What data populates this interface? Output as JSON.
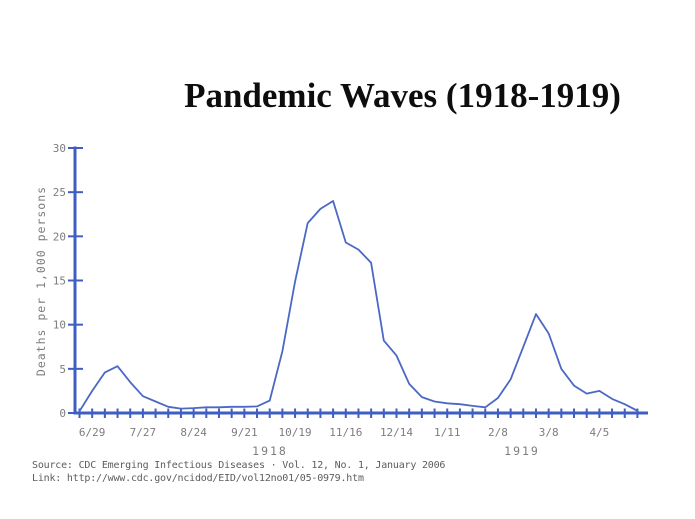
{
  "title": "Pandemic Waves (1918-1919)",
  "source": {
    "line1": "Source: CDC Emerging Infectious Diseases · Vol. 12, No. 1, January 2006",
    "line2": "Link: http://www.cdc.gov/ncidod/EID/vol12no01/05-0979.htm"
  },
  "colors": {
    "curve": "#4a68c4",
    "axis": "#3f5ec2",
    "tick_text": "#7d7d7d",
    "title_text": "#0d0d0d",
    "source_text": "#5c5c5c",
    "background": "#ffffff"
  },
  "chart_data": {
    "type": "line",
    "title": "Pandemic Waves (1918-1919)",
    "xlabel": "",
    "ylabel": "Deaths per 1,000 persons",
    "ylim": [
      0,
      30
    ],
    "yticks": [
      0,
      5,
      10,
      15,
      20,
      25,
      30
    ],
    "grid": "off",
    "legend": "none",
    "x": [
      "6/22",
      "6/29",
      "7/6",
      "7/13",
      "7/20",
      "7/27",
      "8/3",
      "8/10",
      "8/17",
      "8/24",
      "8/31",
      "9/7",
      "9/14",
      "9/21",
      "9/28",
      "10/5",
      "10/12",
      "10/19",
      "10/26",
      "11/2",
      "11/9",
      "11/16",
      "11/23",
      "11/30",
      "12/7",
      "12/14",
      "12/21",
      "12/28",
      "1/4",
      "1/11",
      "1/18",
      "1/25",
      "2/1",
      "2/8",
      "2/15",
      "2/22",
      "3/1",
      "3/8",
      "3/15",
      "3/22",
      "3/29",
      "4/5",
      "4/12",
      "4/19",
      "4/26"
    ],
    "values": [
      0.2,
      2.5,
      4.6,
      5.3,
      3.5,
      1.9,
      1.3,
      0.7,
      0.5,
      0.55,
      0.65,
      0.65,
      0.7,
      0.7,
      0.75,
      1.4,
      7.0,
      14.9,
      21.5,
      23.1,
      24.0,
      19.3,
      18.5,
      17.0,
      8.2,
      6.5,
      3.3,
      1.8,
      1.3,
      1.1,
      1.0,
      0.8,
      0.65,
      1.7,
      3.8,
      7.5,
      11.2,
      9.0,
      5.0,
      3.1,
      2.2,
      2.5,
      1.6,
      1.0,
      0.25
    ],
    "x_tick_labels": [
      {
        "i": 1,
        "label": "6/29"
      },
      {
        "i": 5,
        "label": "7/27"
      },
      {
        "i": 9,
        "label": "8/24"
      },
      {
        "i": 13,
        "label": "9/21"
      },
      {
        "i": 17,
        "label": "10/19"
      },
      {
        "i": 21,
        "label": "11/16"
      },
      {
        "i": 25,
        "label": "12/14"
      },
      {
        "i": 29,
        "label": "1/11"
      },
      {
        "i": 33,
        "label": "2/8"
      },
      {
        "i": 37,
        "label": "3/8"
      },
      {
        "i": 41,
        "label": "4/5"
      }
    ],
    "year_labels": [
      "1918",
      "1919"
    ]
  }
}
